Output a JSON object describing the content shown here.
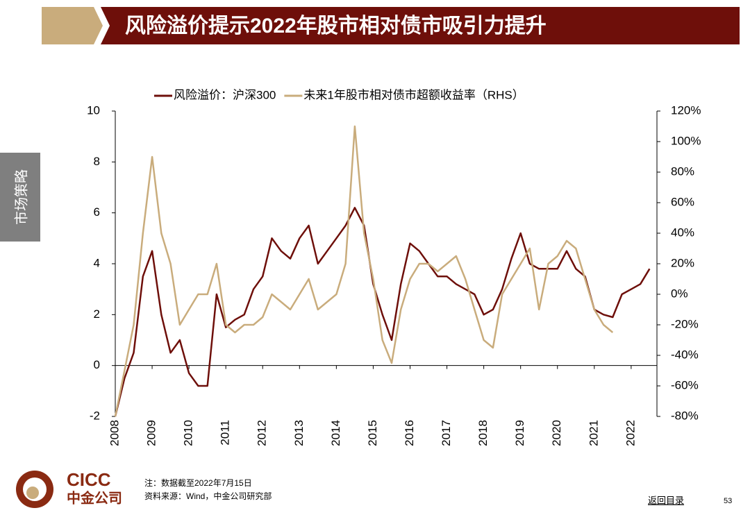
{
  "header": {
    "title": "风险溢价提示2022年股市相对债市吸引力提升"
  },
  "side_tab": "市场策略",
  "chart_data": {
    "type": "line",
    "x": [
      2008.0,
      2008.25,
      2008.5,
      2008.75,
      2009.0,
      2009.25,
      2009.5,
      2009.75,
      2010.0,
      2010.25,
      2010.5,
      2010.75,
      2011.0,
      2011.25,
      2011.5,
      2011.75,
      2012.0,
      2012.25,
      2012.5,
      2012.75,
      2013.0,
      2013.25,
      2013.5,
      2013.75,
      2014.0,
      2014.25,
      2014.5,
      2014.75,
      2015.0,
      2015.25,
      2015.5,
      2015.75,
      2016.0,
      2016.25,
      2016.5,
      2016.75,
      2017.0,
      2017.25,
      2017.5,
      2017.75,
      2018.0,
      2018.25,
      2018.5,
      2018.75,
      2019.0,
      2019.25,
      2019.5,
      2019.75,
      2020.0,
      2020.25,
      2020.5,
      2020.75,
      2021.0,
      2021.25,
      2021.5,
      2021.75,
      2022.0,
      2022.25,
      2022.5
    ],
    "series": [
      {
        "name": "风险溢价：沪深300",
        "color": "#6e0f0a",
        "axis": "y",
        "values": [
          -2,
          -0.5,
          0.5,
          3.5,
          4.5,
          2.0,
          0.5,
          1.0,
          -0.3,
          -0.8,
          -0.8,
          2.8,
          1.5,
          1.8,
          2.0,
          3.0,
          3.5,
          5.0,
          4.5,
          4.2,
          5.0,
          5.5,
          4.0,
          4.5,
          5.0,
          5.5,
          6.2,
          5.5,
          3.2,
          2.0,
          1.0,
          3.2,
          4.8,
          4.5,
          4.0,
          3.5,
          3.5,
          3.2,
          3.0,
          2.8,
          2.0,
          2.2,
          3.0,
          4.2,
          5.2,
          4.0,
          3.8,
          3.8,
          3.8,
          4.5,
          3.8,
          3.5,
          2.2,
          2.0,
          1.9,
          2.8,
          3.0,
          3.2,
          3.8
        ]
      },
      {
        "name": "未来1年股市相对债市超额收益率（RHS）",
        "color": "#c9ac7c",
        "axis": "y2",
        "values": [
          -80,
          -50,
          -20,
          40,
          90,
          40,
          20,
          -20,
          -10,
          0,
          0,
          20,
          -20,
          -25,
          -20,
          -20,
          -15,
          0,
          -5,
          -10,
          0,
          10,
          -10,
          -5,
          0,
          20,
          110,
          40,
          10,
          -30,
          -45,
          -10,
          10,
          20,
          20,
          15,
          20,
          25,
          10,
          -10,
          -30,
          -35,
          0,
          10,
          20,
          30,
          -10,
          20,
          25,
          35,
          30,
          10,
          -10,
          -20,
          -25,
          null,
          null,
          null,
          null
        ]
      }
    ],
    "xlim": [
      2008,
      2022.7
    ],
    "xticks": [
      2008,
      2009,
      2010,
      2011,
      2012,
      2013,
      2014,
      2015,
      2016,
      2017,
      2018,
      2019,
      2020,
      2021,
      2022
    ],
    "ylim": [
      -2,
      10
    ],
    "yticks": [
      -2,
      0,
      2,
      4,
      6,
      8,
      10
    ],
    "y2lim": [
      -80,
      120
    ],
    "y2ticks": [
      {
        "value": -80,
        "label": "-80%"
      },
      {
        "value": -60,
        "label": "-60%"
      },
      {
        "value": -40,
        "label": "-40%"
      },
      {
        "value": -20,
        "label": "-20%"
      },
      {
        "value": 0,
        "label": "0%"
      },
      {
        "value": 20,
        "label": "20%"
      },
      {
        "value": 40,
        "label": "40%"
      },
      {
        "value": 60,
        "label": "60%"
      },
      {
        "value": 80,
        "label": "80%"
      },
      {
        "value": 100,
        "label": "100%"
      },
      {
        "value": 120,
        "label": "120%"
      }
    ],
    "grid": false
  },
  "footer": {
    "logo_en": "CICC",
    "logo_cn": "中金公司",
    "note": "注：数据截至2022年7月15日",
    "source": "资料来源：Wind，中金公司研究部",
    "back": "返回目录",
    "page": "53"
  }
}
